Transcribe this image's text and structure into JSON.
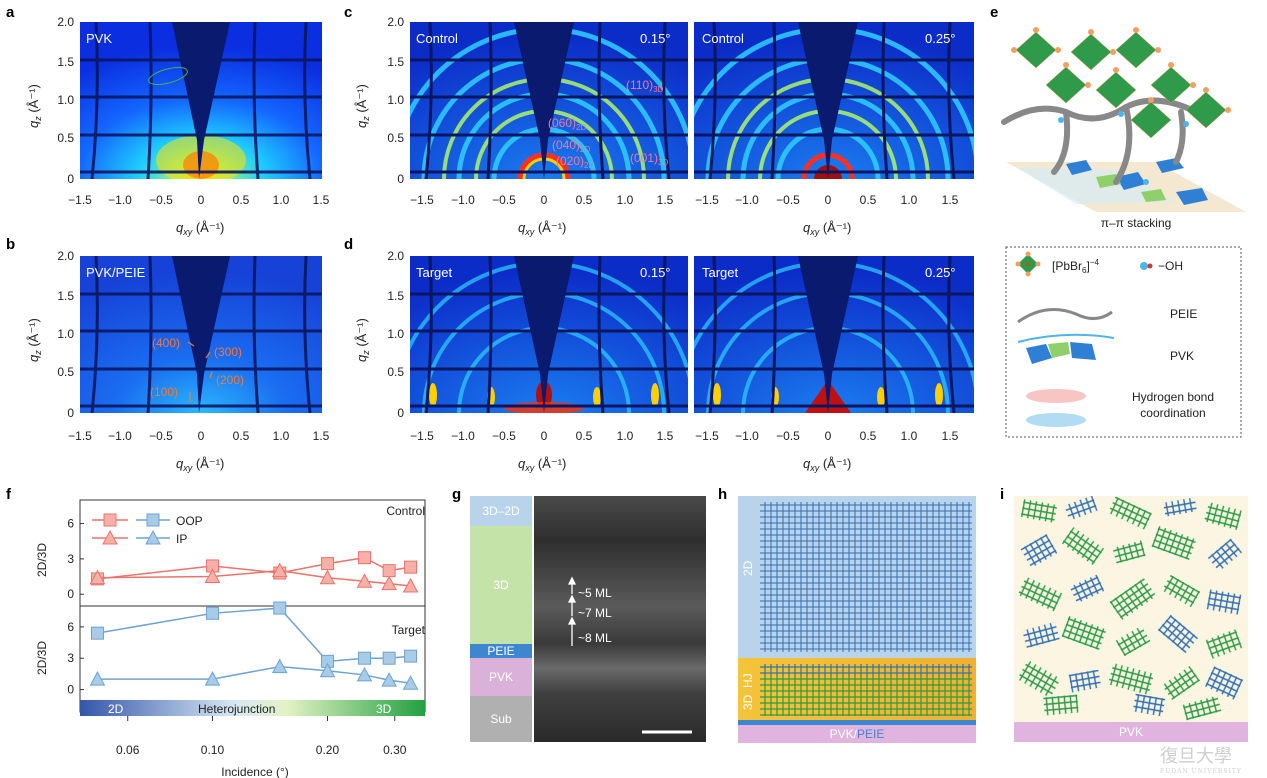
{
  "panel_letters": {
    "a": "a",
    "b": "b",
    "c": "c",
    "d": "d",
    "e": "e",
    "f": "f",
    "g": "g",
    "h": "h",
    "i": "i"
  },
  "axes": {
    "qz_label": "q",
    "qz_sub": "z",
    "qxy_label": "q",
    "qxy_sub": "xy",
    "unit": " (Å⁻¹)",
    "y_ticks": [
      "2.0",
      "1.5",
      "1.0",
      "0.5",
      "0"
    ],
    "x_ticks_ab": [
      "−1.5",
      "−1.0",
      "−0.5",
      "0",
      "0.5",
      "1.0",
      "1.5"
    ],
    "x_ticks_cd_left": [
      "−1.5",
      "−1.0",
      "−0.5",
      "0",
      "0.5",
      "1.0",
      "1.5"
    ],
    "x_ticks_cd_right": [
      "−1.5",
      "−1.0",
      "−0.5",
      "0",
      "0.5",
      "1.0",
      "1.5"
    ]
  },
  "panel_a": {
    "label": "PVK"
  },
  "panel_b": {
    "label": "PVK/PEIE",
    "peaks": [
      "(400)",
      "(300)",
      "(200)",
      "(100)"
    ]
  },
  "panel_c": {
    "left_label": "Control",
    "left_angle": "0.15°",
    "right_label": "Control",
    "right_angle": "0.25°",
    "peaks": [
      {
        "main": "(110)",
        "sub": "3D"
      },
      {
        "main": "(060)",
        "sub": "2D"
      },
      {
        "main": "(040)",
        "sub": "2D"
      },
      {
        "main": "(020)",
        "sub": "2D"
      },
      {
        "main": "(001)",
        "sub": "3D"
      }
    ]
  },
  "panel_d": {
    "left_label": "Target",
    "left_angle": "0.15°",
    "right_label": "Target",
    "right_angle": "0.25°"
  },
  "panel_e": {
    "stacking": "π–π stacking",
    "pbbr": "[PbBr",
    "pbbr_sub": "6",
    "pbbr_sup": "]",
    "pbbr_charge": "−4",
    "oh": "−OH",
    "peie": "PEIE",
    "pvk": "PVK",
    "hbond_line1": "Hydrogen bond",
    "hbond_line2": "coordination"
  },
  "panel_f": {
    "ylabel": "2D/3D",
    "legend": {
      "oop": "OOP",
      "ip": "IP"
    },
    "control_label": "Control",
    "target_label": "Target",
    "y_ticks": [
      "6",
      "3",
      "0"
    ],
    "x_ticks": [
      "0.06",
      "0.10",
      "0.20",
      "0.30"
    ],
    "xlabel": "Incidence (°)",
    "gradient_labels": {
      "left": "2D",
      "mid": "Heterojunction",
      "right": "3D"
    },
    "colors": {
      "control": "#e8746b",
      "target": "#6fa3cf"
    }
  },
  "panel_g": {
    "layers": [
      "3D–2D",
      "3D",
      "PEIE",
      "PVK",
      "Sub"
    ],
    "annotations": [
      "~5 ML",
      "~7 ML",
      "~8 ML"
    ]
  },
  "panel_h": {
    "label_2d": "2D",
    "label_hj": "HJ",
    "label_3d": "3D",
    "bottom_main": "PVK/",
    "bottom_peie": "PEIE"
  },
  "panel_i": {
    "bottom": "PVK"
  },
  "watermark": {
    "text": "復旦大學",
    "sub": "FUDAN UNIVERSITY"
  },
  "chart_data": [
    {
      "type": "line",
      "title": "Control",
      "xlabel": "Incidence (°)",
      "ylabel": "2D/3D",
      "x": [
        0.05,
        0.1,
        0.15,
        0.2,
        0.25,
        0.29,
        0.33
      ],
      "series": [
        {
          "name": "OOP",
          "values": [
            1.3,
            2.4,
            1.8,
            2.6,
            3.1,
            2.0,
            2.3
          ]
        },
        {
          "name": "IP",
          "values": [
            1.4,
            1.5,
            2.0,
            1.4,
            1.1,
            0.9,
            0.7
          ]
        }
      ],
      "ylim": [
        -1,
        8
      ],
      "xscale": "log"
    },
    {
      "type": "line",
      "title": "Target",
      "xlabel": "Incidence (°)",
      "ylabel": "2D/3D",
      "x": [
        0.05,
        0.1,
        0.15,
        0.2,
        0.25,
        0.29,
        0.33
      ],
      "series": [
        {
          "name": "OOP",
          "values": [
            5.4,
            7.3,
            7.8,
            2.7,
            3.0,
            3.0,
            3.2
          ]
        },
        {
          "name": "IP",
          "values": [
            1.0,
            1.0,
            2.2,
            1.8,
            1.4,
            0.9,
            0.6
          ]
        }
      ],
      "ylim": [
        -1,
        8
      ],
      "xscale": "log"
    }
  ]
}
